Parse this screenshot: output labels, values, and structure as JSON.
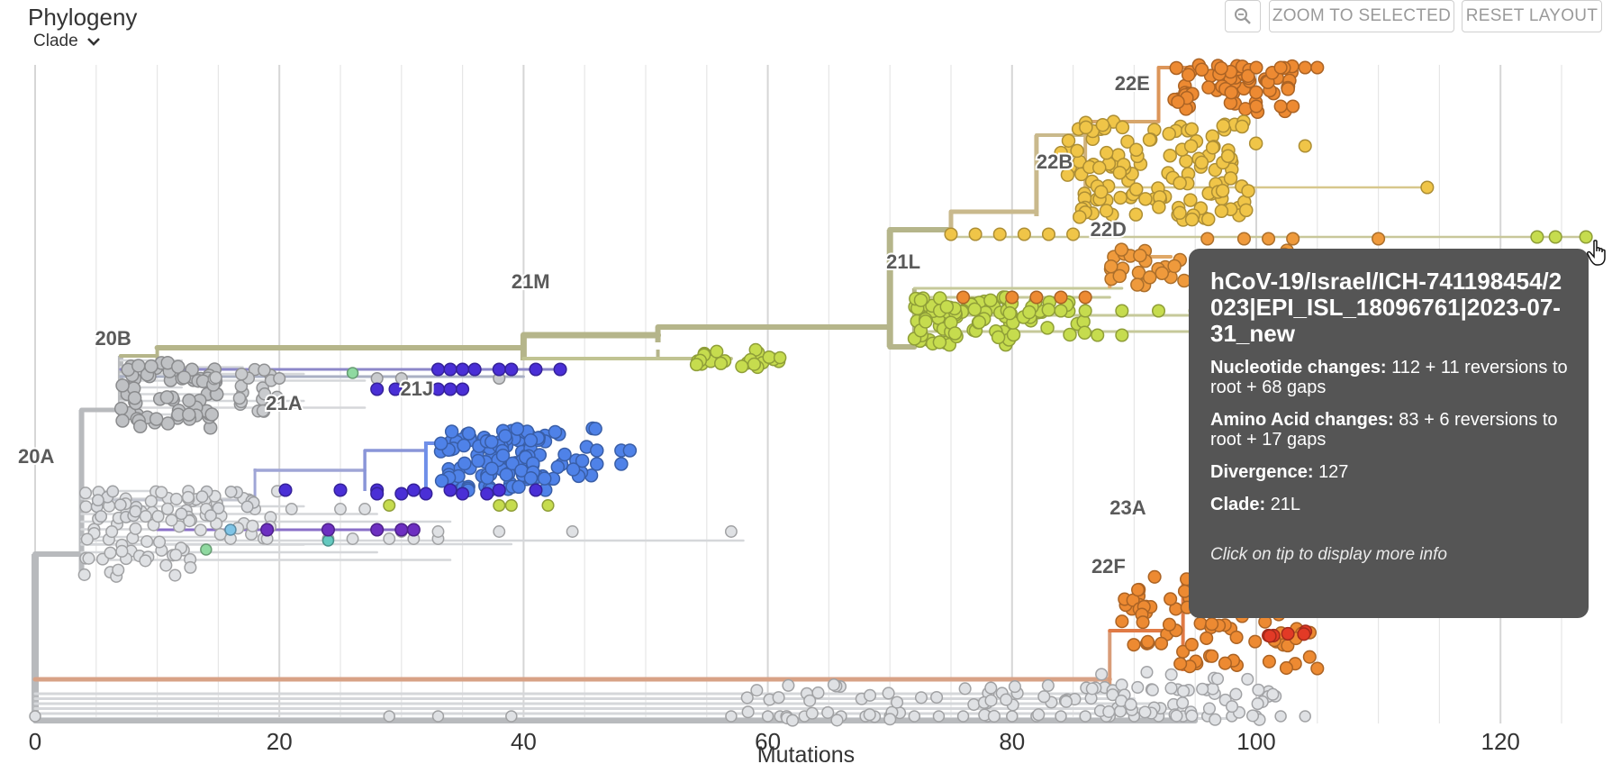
{
  "panel": {
    "title": "Phylogeny",
    "color_by": "Clade"
  },
  "buttons": {
    "zoom_to_selected": "ZOOM TO SELECTED",
    "reset_layout": "RESET LAYOUT"
  },
  "axis": {
    "xlabel": "Mutations",
    "ticks": [
      0,
      20,
      40,
      60,
      80,
      100,
      120
    ],
    "range": [
      0,
      128
    ]
  },
  "clade_labels": [
    {
      "text": "20A",
      "x": -1.4,
      "y": 514
    },
    {
      "text": "20B",
      "x": 4.9,
      "y": 383
    },
    {
      "text": "21A",
      "x": 18.9,
      "y": 455
    },
    {
      "text": "21J",
      "x": 29.9,
      "y": 439
    },
    {
      "text": "21M",
      "x": 39.0,
      "y": 320
    },
    {
      "text": "21L",
      "x": 69.7,
      "y": 298
    },
    {
      "text": "22B",
      "x": 82.0,
      "y": 187
    },
    {
      "text": "22E",
      "x": 88.4,
      "y": 100
    },
    {
      "text": "22D",
      "x": 86.4,
      "y": 262
    },
    {
      "text": "23A",
      "x": 88.0,
      "y": 571
    },
    {
      "text": "22F",
      "x": 86.5,
      "y": 636
    }
  ],
  "clade_colors": {
    "20A": "#c6c9cc",
    "20B": "#b5b8bb",
    "21A": "#9fa5d6",
    "21J": "#4f82e8",
    "21M": "#b5b58a",
    "21L": "#c6dc4e",
    "22B": "#f0c548",
    "22E": "#ed8a32",
    "22D": "#ef9a3c",
    "22F": "#d99c78",
    "23A": "#e8652c",
    "dark": "#4a2fd6",
    "purple": "#6d2fc1",
    "teal": "#65c9c0"
  },
  "tooltip": {
    "strain": "hCoV-19/Israel/ICH-741198454/2023|EPI_ISL_18096761|2023-07-31_new",
    "nuc_label": "Nucleotide changes:",
    "nuc_value": "112 + 11 reversions to root + 68 gaps",
    "aa_label": "Amino Acid changes:",
    "aa_value": "83 + 6 reversions to root + 17 gaps",
    "div_label": "Divergence:",
    "div_value": "127",
    "clade_label": "Clade:",
    "clade_value": "21L",
    "hint": "Click on tip to display more info"
  }
}
